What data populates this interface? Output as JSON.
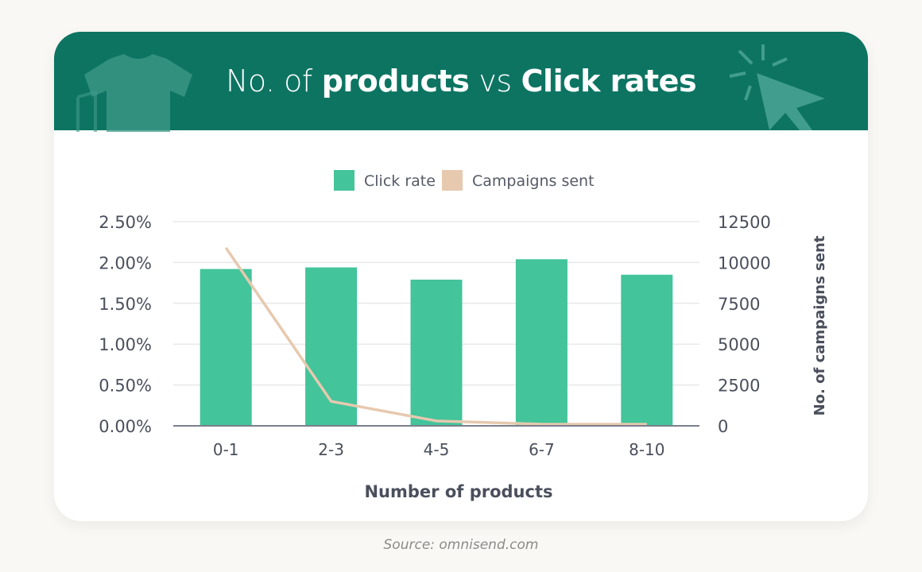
{
  "header": {
    "title_parts": [
      {
        "text": "No. of",
        "weight": "light"
      },
      {
        "text": "products",
        "weight": "bold"
      },
      {
        "text": "vs",
        "weight": "light"
      },
      {
        "text": "Click rates",
        "weight": "bold"
      }
    ]
  },
  "source": "Source: omnisend.com",
  "colors": {
    "banner": "#0d7462",
    "bar": "#43c49a",
    "line": "#e6c9af",
    "axis_text": "#4a4f5c",
    "grid": "#e8e8e8"
  },
  "chart_data": {
    "type": "bar",
    "title": "No. of products vs Click rates",
    "xlabel": "Number of products",
    "ylabel": "",
    "y2label": "No. of campaigns sent",
    "categories": [
      "0-1",
      "2-3",
      "4-5",
      "6-7",
      "8-10"
    ],
    "series": [
      {
        "name": "Click rate",
        "type": "bar",
        "axis": "left",
        "values": [
          1.92,
          1.94,
          1.79,
          2.04,
          1.85
        ],
        "color": "#43c49a"
      },
      {
        "name": "Campaigns sent",
        "type": "line",
        "axis": "right",
        "values": [
          10900,
          1500,
          300,
          100,
          100
        ],
        "color": "#e6c9af"
      }
    ],
    "ylim": [
      0,
      2.5
    ],
    "y_ticks": [
      "0.00%",
      "0.50%",
      "1.00%",
      "1.50%",
      "2.00%",
      "2.50%"
    ],
    "y2lim": [
      0,
      12500
    ],
    "y2_ticks": [
      "0",
      "2500",
      "5000",
      "7500",
      "10000",
      "12500"
    ],
    "legend": {
      "position": "top-center"
    },
    "grid": true
  }
}
